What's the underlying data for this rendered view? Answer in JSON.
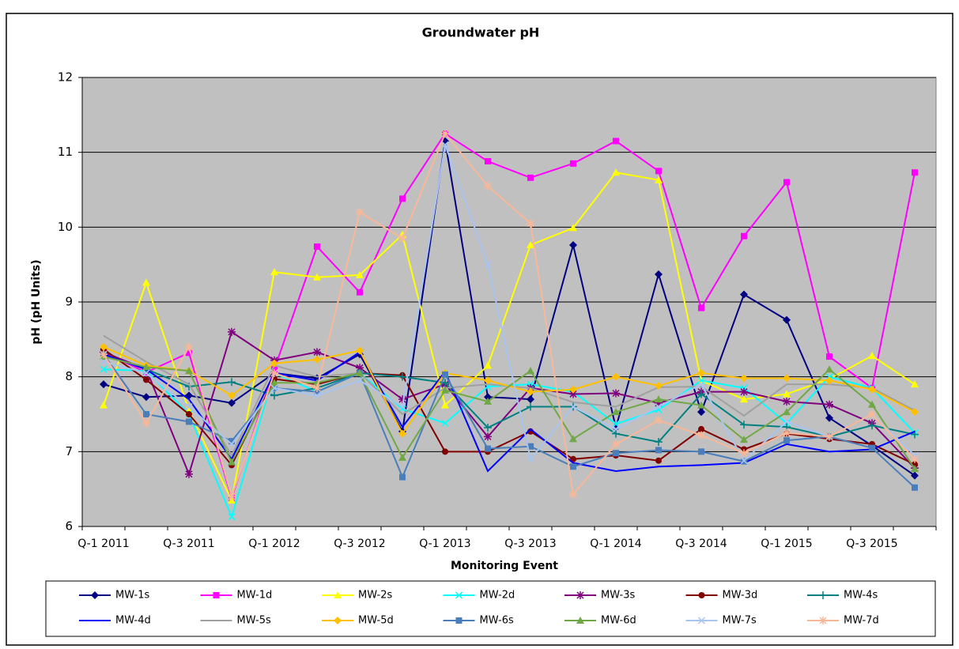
{
  "chart_data": {
    "type": "line",
    "title": "Groundwater pH",
    "x_label": "Monitoring Event",
    "y_label": "pH (pH Units)",
    "categories": [
      "Q-1 2011",
      null,
      "Q-3 2011",
      null,
      "Q-1 2012",
      null,
      "Q-3 2012",
      null,
      "Q-1 2013",
      null,
      "Q-3 2013",
      null,
      "Q-1 2014",
      null,
      "Q-3 2014",
      null,
      "Q-1 2015",
      null,
      "Q-3 2015",
      null
    ],
    "ylim": [
      6,
      12
    ],
    "yticks": [
      6,
      7,
      8,
      9,
      10,
      11,
      12
    ],
    "grid": true,
    "plot_background": "#c0c0c0",
    "series": [
      {
        "name": "MW-1s",
        "color": "#000080",
        "marker": "diamond",
        "values": [
          7.9,
          7.73,
          7.75,
          7.65,
          8.05,
          7.98,
          8.3,
          7.27,
          11.15,
          7.73,
          7.7,
          9.76,
          7.32,
          9.37,
          7.53,
          9.1,
          8.76,
          7.45,
          7.08,
          6.68
        ]
      },
      {
        "name": "MW-1d",
        "color": "#ff00ff",
        "marker": "square",
        "values": [
          8.33,
          8.06,
          8.32,
          6.38,
          8.1,
          9.74,
          9.13,
          10.38,
          11.25,
          10.88,
          10.66,
          10.85,
          11.15,
          10.75,
          8.92,
          9.88,
          10.6,
          8.27,
          7.85,
          10.73
        ]
      },
      {
        "name": "MW-2s",
        "color": "#ffff00",
        "marker": "triangle",
        "values": [
          7.62,
          9.26,
          7.55,
          6.35,
          9.4,
          9.33,
          9.36,
          9.9,
          7.62,
          8.15,
          9.76,
          9.99,
          10.73,
          10.63,
          7.95,
          7.7,
          7.77,
          7.97,
          8.28,
          7.9
        ]
      },
      {
        "name": "MW-2d",
        "color": "#00ffff",
        "marker": "x",
        "values": [
          8.1,
          8.08,
          7.5,
          6.13,
          8.05,
          7.8,
          8.05,
          7.57,
          7.38,
          7.87,
          7.9,
          7.8,
          7.37,
          7.56,
          7.95,
          7.85,
          7.38,
          8.0,
          7.85,
          7.25
        ]
      },
      {
        "name": "MW-3s",
        "color": "#800080",
        "marker": "asterisk",
        "values": [
          8.33,
          8.1,
          6.7,
          8.6,
          8.22,
          8.33,
          8.12,
          7.7,
          7.9,
          7.2,
          7.85,
          7.77,
          7.78,
          7.65,
          7.8,
          7.8,
          7.67,
          7.63,
          7.38,
          6.78
        ]
      },
      {
        "name": "MW-3d",
        "color": "#800000",
        "marker": "circle",
        "values": [
          8.37,
          7.96,
          7.5,
          6.82,
          7.97,
          7.9,
          8.05,
          8.02,
          7.0,
          7.0,
          7.27,
          6.9,
          6.95,
          6.88,
          7.3,
          7.03,
          7.24,
          7.17,
          7.1,
          6.83
        ]
      },
      {
        "name": "MW-4s",
        "color": "#008080",
        "marker": "plus",
        "values": [
          8.3,
          8.1,
          7.87,
          7.93,
          7.75,
          7.85,
          8.05,
          8.0,
          7.92,
          7.32,
          7.6,
          7.6,
          7.24,
          7.13,
          7.77,
          7.36,
          7.33,
          7.2,
          7.35,
          7.23
        ]
      },
      {
        "name": "MW-4d",
        "color": "#0000ff",
        "marker": "none",
        "values": [
          8.3,
          8.1,
          7.7,
          6.9,
          8.05,
          7.95,
          8.33,
          7.33,
          8.07,
          6.74,
          7.3,
          6.85,
          6.74,
          6.8,
          6.82,
          6.85,
          7.1,
          7.0,
          7.03,
          7.27
        ]
      },
      {
        "name": "MW-5s",
        "color": "#a0a0a0",
        "marker": "none",
        "values": [
          8.55,
          8.2,
          7.9,
          6.95,
          8.15,
          8.0,
          8.05,
          7.5,
          7.85,
          7.9,
          7.85,
          7.66,
          7.6,
          7.86,
          7.87,
          7.48,
          7.9,
          7.9,
          7.85,
          7.55
        ]
      },
      {
        "name": "MW-5d",
        "color": "#ffc000",
        "marker": "diamond",
        "values": [
          8.4,
          8.15,
          8.08,
          7.75,
          8.18,
          8.23,
          8.35,
          7.24,
          8.05,
          7.95,
          7.8,
          7.83,
          8.0,
          7.88,
          8.05,
          7.98,
          7.98,
          7.95,
          7.83,
          7.53
        ]
      },
      {
        "name": "MW-6s",
        "color": "#4a7ebb",
        "marker": "square",
        "values": [
          8.3,
          7.5,
          7.4,
          7.14,
          7.85,
          7.8,
          8.05,
          6.66,
          8.03,
          7.04,
          7.07,
          6.8,
          6.98,
          7.02,
          7.0,
          6.87,
          7.15,
          7.2,
          7.05,
          6.52
        ]
      },
      {
        "name": "MW-6d",
        "color": "#70a845",
        "marker": "triangle",
        "values": [
          8.27,
          8.13,
          8.08,
          6.86,
          7.92,
          7.92,
          8.05,
          6.92,
          7.82,
          7.67,
          8.08,
          7.17,
          7.53,
          7.7,
          7.62,
          7.16,
          7.53,
          8.1,
          7.63,
          6.77
        ]
      },
      {
        "name": "MW-7s",
        "color": "#a8c4f0",
        "marker": "x",
        "values": [
          8.2,
          8.05,
          7.6,
          7.1,
          7.85,
          7.75,
          7.95,
          7.6,
          11.1,
          9.5,
          6.9,
          7.6,
          7.3,
          7.6,
          7.9,
          6.88,
          7.4,
          7.2,
          7.5,
          6.95
        ]
      },
      {
        "name": "MW-7d",
        "color": "#f8b898",
        "marker": "asterisk",
        "values": [
          8.3,
          7.38,
          8.4,
          6.4,
          8.05,
          7.85,
          10.2,
          9.85,
          11.25,
          10.55,
          10.05,
          6.43,
          7.1,
          7.42,
          7.22,
          6.98,
          7.25,
          7.2,
          7.5,
          6.9
        ]
      }
    ]
  }
}
